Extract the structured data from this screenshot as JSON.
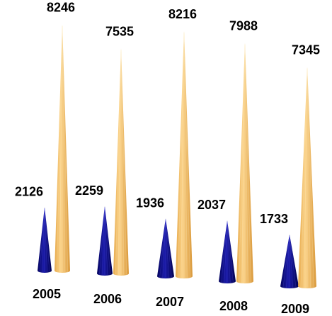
{
  "chart_data": {
    "type": "bar",
    "categories": [
      "2005",
      "2006",
      "2007",
      "2008",
      "2009"
    ],
    "series": [
      {
        "name": "",
        "values": [
          2126,
          2259,
          1936,
          2037,
          1733
        ],
        "color": "#0a0a8c"
      },
      {
        "name": "",
        "values": [
          8246,
          7535,
          8216,
          7988,
          7345
        ],
        "color": "#f5c26b"
      }
    ],
    "title": "",
    "xlabel": "",
    "ylabel": "",
    "ylim": [
      0,
      8500
    ],
    "grid": false,
    "legend": "none"
  }
}
